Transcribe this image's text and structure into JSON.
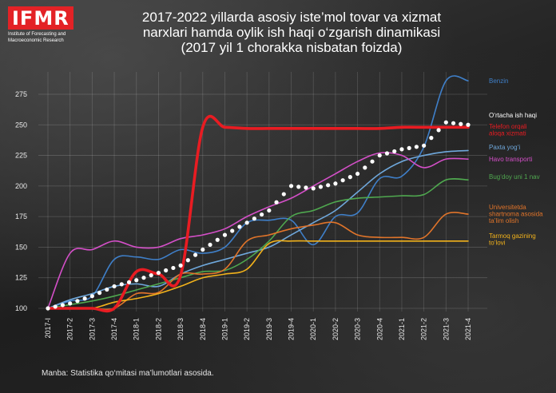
{
  "logo": {
    "mark": "IFMR",
    "subtitle_line1": "Institute of Forecasting and",
    "subtitle_line2": "Macroeconomic Research"
  },
  "title_lines": [
    "2017-2022 yillarda asosiy iste’mol tovar va xizmat",
    "narxlari hamda oylik ish haqi o‘zgarish dinamikasi",
    "(2017 yil 1 chorakka nisbatan foizda)"
  ],
  "source": "Manba: Statistika qo‘mitasi ma’lumotlari asosida.",
  "chart_data": {
    "type": "line",
    "title": "2017-2022 yillarda asosiy iste’mol tovar va xizmat narxlari hamda oylik ish haqi o‘zgarish dinamikasi (2017 yil 1 chorakka nisbatan foizda)",
    "categories": [
      "2017-I",
      "2017-2",
      "2017-3",
      "2017-4",
      "2018-1",
      "2018-2",
      "2018-3",
      "2018-4",
      "2019-1",
      "2019-2",
      "2019-3",
      "2019-4",
      "2020-1",
      "2020-2",
      "2020-3",
      "2020-4",
      "2021-1",
      "2021-2",
      "2021-3",
      "2021-4"
    ],
    "ylim": [
      100,
      290
    ],
    "yticks": [
      100,
      125,
      150,
      175,
      200,
      225,
      250,
      275
    ],
    "grid": true,
    "series": [
      {
        "name": "Benzin",
        "color": "#3f7fc8",
        "values": [
          100,
          106,
          110,
          140,
          142,
          140,
          148,
          145,
          150,
          170,
          172,
          172,
          152,
          175,
          178,
          206,
          208,
          232,
          286,
          286
        ]
      },
      {
        "name": "O‘rtacha ish haqi",
        "color": "#ffffff",
        "style": "dots",
        "values": [
          100,
          104,
          110,
          118,
          123,
          129,
          135,
          148,
          160,
          170,
          180,
          200,
          198,
          202,
          210,
          225,
          230,
          233,
          252,
          250
        ]
      },
      {
        "name": "Telefon orqali aloqa xizmati",
        "color": "#e81c22",
        "values": [
          100,
          100,
          100,
          100,
          130,
          128,
          127,
          248,
          248,
          247,
          247,
          247,
          247,
          247,
          247,
          247,
          248,
          248,
          248,
          248
        ]
      },
      {
        "name": "Paxta yog‘i",
        "color": "#6fa8dc",
        "values": [
          100,
          107,
          112,
          118,
          120,
          118,
          128,
          135,
          140,
          145,
          150,
          160,
          170,
          180,
          195,
          210,
          220,
          225,
          228,
          229
        ]
      },
      {
        "name": "Havo transporti",
        "color": "#d44fc8",
        "values": [
          100,
          145,
          148,
          155,
          150,
          150,
          157,
          160,
          165,
          175,
          183,
          190,
          200,
          210,
          220,
          227,
          225,
          215,
          222,
          222
        ]
      },
      {
        "name": "Bug‘doy uni 1 nav",
        "color": "#4fa84f",
        "values": [
          100,
          103,
          106,
          110,
          115,
          120,
          125,
          130,
          131,
          140,
          155,
          175,
          180,
          187,
          190,
          191,
          192,
          193,
          205,
          205
        ]
      },
      {
        "name": "Universitetda shartnoma asosida ta’lim olish",
        "color": "#e0742a",
        "values": [
          100,
          100,
          100,
          100,
          112,
          113,
          128,
          128,
          132,
          155,
          160,
          165,
          168,
          170,
          160,
          158,
          158,
          158,
          177,
          177
        ]
      },
      {
        "name": "Tarmoq gazining to‘lovi",
        "color": "#f2b21b",
        "values": [
          100,
          100,
          100,
          105,
          108,
          112,
          118,
          125,
          128,
          132,
          153,
          155,
          155,
          155,
          155,
          155,
          155,
          155,
          155,
          155
        ]
      }
    ],
    "label_lines": {
      "Benzin": [
        "Benzin"
      ],
      "O‘rtacha ish haqi": [
        "O‘rtacha ish haqi"
      ],
      "Telefon orqali aloqa xizmati": [
        "Telefon orqali",
        "aloqa xizmati"
      ],
      "Paxta yog‘i": [
        "Paxta yog‘i"
      ],
      "Havo transporti": [
        "Havo transporti"
      ],
      "Bug‘doy uni 1 nav": [
        "Bug‘doy uni 1 nav"
      ],
      "Universitetda shartnoma asosida ta’lim olish": [
        "Universitetda",
        "shartnoma asosida",
        "ta’lim olish"
      ],
      "Tarmoq gazining to‘lovi": [
        "Tarmoq gazining",
        "to‘lovi"
      ]
    }
  }
}
